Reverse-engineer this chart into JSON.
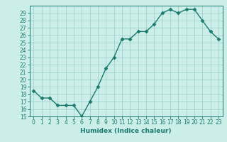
{
  "x": [
    0,
    1,
    2,
    3,
    4,
    5,
    6,
    7,
    8,
    9,
    10,
    11,
    12,
    13,
    14,
    15,
    16,
    17,
    18,
    19,
    20,
    21,
    22,
    23
  ],
  "y": [
    18.5,
    17.5,
    17.5,
    16.5,
    16.5,
    16.5,
    15.0,
    17.0,
    19.0,
    21.5,
    23.0,
    25.5,
    25.5,
    26.5,
    26.5,
    27.5,
    29.0,
    29.5,
    29.0,
    29.5,
    29.5,
    28.0,
    26.5,
    25.5
  ],
  "line_color": "#1a7a6e",
  "marker": "D",
  "marker_size": 2.5,
  "xlabel": "Humidex (Indice chaleur)",
  "xlim": [
    -0.5,
    23.5
  ],
  "ylim": [
    15,
    30
  ],
  "yticks": [
    15,
    16,
    17,
    18,
    19,
    20,
    21,
    22,
    23,
    24,
    25,
    26,
    27,
    28,
    29
  ],
  "xticks": [
    0,
    1,
    2,
    3,
    4,
    5,
    6,
    7,
    8,
    9,
    10,
    11,
    12,
    13,
    14,
    15,
    16,
    17,
    18,
    19,
    20,
    21,
    22,
    23
  ],
  "bg_color": "#cceee8",
  "grid_color": "#99cccc",
  "tick_fontsize": 5.5,
  "xlabel_fontsize": 6.5,
  "linewidth": 1.0
}
